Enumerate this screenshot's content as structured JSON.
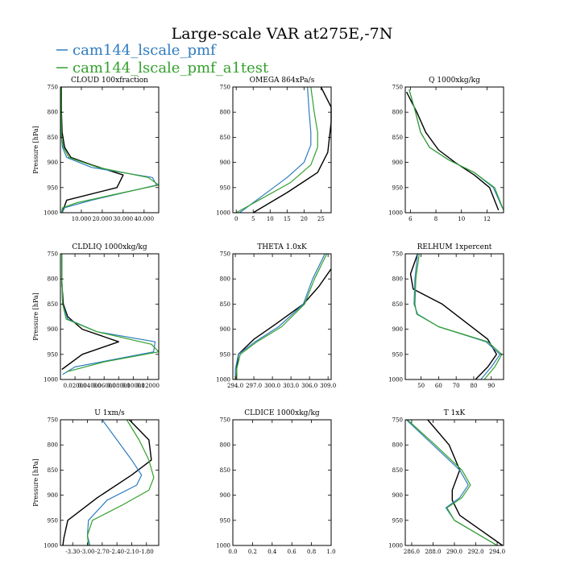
{
  "figure": {
    "title": "Large-scale VAR at275E,-7N",
    "legend": [
      {
        "label": "cam144_lscale_pmf",
        "color": "#2e7cbf"
      },
      {
        "label": "cam144_lscale_pmf_a1test",
        "color": "#33a02c"
      }
    ]
  },
  "colors": {
    "cam144_lscale_pmf": "#2e7cbf",
    "cam144_lscale_pmf_a1test": "#33a02c",
    "reference": "#000000"
  },
  "chart_data": [
    {
      "type": "line",
      "title": "CLOUD  100xfraction",
      "ylabel": "Pressure [hPa]",
      "ylim": [
        1000,
        750
      ],
      "xlim": [
        0,
        47
      ],
      "xticks": [
        10,
        20,
        30,
        40
      ],
      "xtick_labels": [
        "10.000",
        "20.000",
        "30.000",
        "40.000"
      ],
      "yticks": [
        750,
        800,
        850,
        900,
        950,
        1000
      ],
      "series": [
        {
          "color": "#000000",
          "x": [
            0.5,
            0.5,
            0.8,
            2,
            5,
            15,
            30,
            27,
            3,
            0.8
          ],
          "y": [
            750,
            800,
            840,
            870,
            890,
            905,
            925,
            950,
            975,
            1000
          ]
        },
        {
          "color": "#2e7cbf",
          "x": [
            0.4,
            0.4,
            0.5,
            1,
            3,
            15,
            44,
            46,
            15,
            2,
            0.8
          ],
          "y": [
            750,
            800,
            850,
            870,
            890,
            910,
            930,
            945,
            975,
            990,
            1000
          ]
        },
        {
          "color": "#33a02c",
          "x": [
            0.4,
            0.4,
            0.5,
            1.5,
            4,
            18,
            42,
            47,
            30,
            8,
            1,
            0.5
          ],
          "y": [
            750,
            800,
            850,
            870,
            890,
            910,
            930,
            945,
            960,
            980,
            990,
            1000
          ]
        }
      ]
    },
    {
      "type": "line",
      "title": "OMEGA  864xPa/s",
      "ylabel": "",
      "ylim": [
        1000,
        750
      ],
      "xlim": [
        -1,
        28
      ],
      "xticks": [
        0,
        5,
        10,
        15,
        20,
        25
      ],
      "xtick_labels": [
        "0",
        "5",
        "10",
        "15",
        "20",
        "25"
      ],
      "yticks": [
        750,
        800,
        850,
        900,
        950,
        1000
      ],
      "series": [
        {
          "color": "#000000",
          "x": [
            25,
            28,
            28,
            27.5,
            27,
            24,
            15,
            5
          ],
          "y": [
            750,
            790,
            820,
            850,
            880,
            920,
            960,
            1000
          ]
        },
        {
          "color": "#2e7cbf",
          "x": [
            21,
            21.5,
            22,
            22,
            20,
            15,
            8,
            1
          ],
          "y": [
            750,
            800,
            840,
            865,
            900,
            930,
            965,
            1000
          ]
        },
        {
          "color": "#33a02c",
          "x": [
            22,
            23,
            24,
            24,
            22,
            16,
            8,
            0
          ],
          "y": [
            750,
            800,
            840,
            870,
            905,
            940,
            970,
            1000
          ]
        }
      ]
    },
    {
      "type": "line",
      "title": "Q  1000xkg/kg",
      "ylabel": "",
      "ylim": [
        1000,
        750
      ],
      "xlim": [
        5.6,
        13.3
      ],
      "xticks": [
        6,
        8,
        10,
        12
      ],
      "xtick_labels": [
        "6",
        "8",
        "10",
        "12"
      ],
      "yticks": [
        750,
        800,
        850,
        900,
        950,
        1000
      ],
      "series": [
        {
          "color": "#000000",
          "x": [
            5.7,
            6.5,
            7.2,
            8.2,
            9.5,
            11,
            12.2,
            12.9
          ],
          "y": [
            760,
            800,
            840,
            875,
            900,
            925,
            950,
            995
          ]
        },
        {
          "color": "#2e7cbf",
          "x": [
            5.9,
            6.4,
            6.8,
            7.5,
            9,
            11,
            12.5,
            13.2
          ],
          "y": [
            755,
            800,
            840,
            870,
            895,
            920,
            950,
            990
          ]
        },
        {
          "color": "#33a02c",
          "x": [
            5.9,
            6.4,
            6.8,
            7.5,
            9,
            11,
            12.6,
            13.3
          ],
          "y": [
            755,
            800,
            840,
            870,
            895,
            920,
            950,
            995
          ]
        }
      ]
    },
    {
      "type": "line",
      "title": "CLDLIQ  1000xkg/kg",
      "ylabel": "Pressure [hPa]",
      "ylim": [
        1000,
        750
      ],
      "xlim": [
        0,
        0.135
      ],
      "xticks": [
        0.02,
        0.04,
        0.06,
        0.08,
        0.1,
        0.12
      ],
      "xtick_labels": [
        "0.02000",
        "0.04000",
        "0.06000",
        "0.08000",
        "0.10000",
        "0.12000"
      ],
      "yticks": [
        750,
        800,
        850,
        900,
        950,
        1000
      ],
      "series": [
        {
          "color": "#000000",
          "x": [
            0.002,
            0.002,
            0.004,
            0.01,
            0.03,
            0.08,
            0.03,
            0.002
          ],
          "y": [
            750,
            810,
            850,
            875,
            900,
            925,
            950,
            980
          ]
        },
        {
          "color": "#2e7cbf",
          "x": [
            0.002,
            0.002,
            0.003,
            0.01,
            0.05,
            0.13,
            0.128,
            0.02,
            0.003
          ],
          "y": [
            750,
            800,
            850,
            880,
            905,
            925,
            945,
            975,
            990
          ]
        },
        {
          "color": "#33a02c",
          "x": [
            0.002,
            0.002,
            0.003,
            0.008,
            0.05,
            0.125,
            0.135,
            0.06,
            0.008
          ],
          "y": [
            750,
            800,
            850,
            880,
            905,
            930,
            945,
            965,
            985
          ]
        }
      ]
    },
    {
      "type": "line",
      "title": "THETA  1.0xK",
      "ylabel": "",
      "ylim": [
        1000,
        750
      ],
      "xlim": [
        293.6,
        309.5
      ],
      "xticks": [
        294,
        297,
        300,
        303,
        306,
        309
      ],
      "xtick_labels": [
        "294.0",
        "297.0",
        "300.0",
        "303.0",
        "306.0",
        "309.0"
      ],
      "yticks": [
        750,
        800,
        850,
        900,
        950,
        1000
      ],
      "series": [
        {
          "color": "#000000",
          "x": [
            309.5,
            307.5,
            305,
            300.5,
            297,
            294.5,
            294.2,
            294.2
          ],
          "y": [
            780,
            815,
            850,
            890,
            920,
            950,
            980,
            1000
          ]
        },
        {
          "color": "#2e7cbf",
          "x": [
            308.5,
            306.5,
            305,
            301,
            297.2,
            294.5,
            294,
            294
          ],
          "y": [
            750,
            800,
            850,
            895,
            925,
            950,
            980,
            1000
          ]
        },
        {
          "color": "#33a02c",
          "x": [
            308.8,
            306.8,
            305.2,
            301.5,
            297.5,
            294.8,
            294.2,
            294.1
          ],
          "y": [
            750,
            800,
            850,
            895,
            925,
            950,
            980,
            1000
          ]
        }
      ]
    },
    {
      "type": "line",
      "title": "RELHUM  1xpercent",
      "ylabel": "",
      "ylim": [
        1000,
        750
      ],
      "xlim": [
        41,
        97
      ],
      "xticks": [
        50,
        60,
        70,
        80,
        90
      ],
      "xtick_labels": [
        "50",
        "60",
        "70",
        "80",
        "90"
      ],
      "yticks": [
        750,
        800,
        850,
        900,
        950,
        1000
      ],
      "series": [
        {
          "color": "#000000",
          "x": [
            48,
            44,
            45.5,
            62,
            88,
            93,
            88,
            81
          ],
          "y": [
            750,
            790,
            820,
            850,
            920,
            950,
            975,
            1000
          ]
        },
        {
          "color": "#2e7cbf",
          "x": [
            48,
            46.5,
            46,
            48,
            60,
            87,
            95,
            90,
            84
          ],
          "y": [
            750,
            800,
            850,
            870,
            895,
            925,
            950,
            975,
            1000
          ]
        },
        {
          "color": "#33a02c",
          "x": [
            49,
            47,
            46.5,
            47.5,
            60,
            88,
            96,
            92,
            86
          ],
          "y": [
            750,
            800,
            850,
            870,
            895,
            925,
            950,
            975,
            1000
          ]
        }
      ]
    },
    {
      "type": "line",
      "title": "U  1xm/s",
      "ylabel": "Pressure [hPa]",
      "ylim": [
        1000,
        750
      ],
      "xlim": [
        -3.55,
        -1.55
      ],
      "xticks": [
        -3.3,
        -3,
        -2.7,
        -2.4,
        -2.1,
        -1.8
      ],
      "xtick_labels": [
        "-3.30",
        "-3.00",
        "-2.70",
        "-2.40",
        "-2.10",
        "-1.80"
      ],
      "yticks": [
        750,
        800,
        850,
        900,
        950,
        1000
      ],
      "series": [
        {
          "color": "#000000",
          "x": [
            -2.15,
            -1.75,
            -1.7,
            -2.1,
            -2.8,
            -3.4,
            -3.48,
            -3.5
          ],
          "y": [
            750,
            790,
            830,
            860,
            905,
            950,
            985,
            1000
          ]
        },
        {
          "color": "#2e7cbf",
          "x": [
            -2.7,
            -2.4,
            -2.1,
            -1.9,
            -2.0,
            -2.6,
            -2.98,
            -3.0,
            -2.95
          ],
          "y": [
            750,
            790,
            830,
            860,
            880,
            910,
            950,
            980,
            1000
          ]
        },
        {
          "color": "#33a02c",
          "x": [
            -2.2,
            -1.95,
            -1.75,
            -1.65,
            -1.75,
            -2.3,
            -2.9,
            -3.0,
            -2.98
          ],
          "y": [
            750,
            790,
            830,
            865,
            890,
            920,
            950,
            980,
            1000
          ]
        }
      ]
    },
    {
      "type": "line",
      "title": "CLDICE  1000xkg/kg",
      "ylabel": "",
      "ylim": [
        1000,
        750
      ],
      "xlim": [
        0,
        1
      ],
      "xticks": [
        0,
        0.2,
        0.4,
        0.6,
        0.8,
        1
      ],
      "xtick_labels": [
        "0.0",
        "0.2",
        "0.4",
        "0.6",
        "0.8",
        "1.0"
      ],
      "yticks": [
        750,
        800,
        850,
        900,
        950,
        1000
      ],
      "series": []
    },
    {
      "type": "line",
      "title": "T  1xK",
      "ylabel": "",
      "ylim": [
        1000,
        750
      ],
      "xlim": [
        285.4,
        294.6
      ],
      "xticks": [
        286,
        288,
        290,
        292,
        294
      ],
      "xtick_labels": [
        "286.0",
        "288.0",
        "290.0",
        "292.0",
        "294.0"
      ],
      "yticks": [
        750,
        800,
        850,
        900,
        950,
        1000
      ],
      "series": [
        {
          "color": "#000000",
          "x": [
            287.5,
            289.5,
            290.5,
            289.8,
            289.8,
            290.5,
            292.5,
            294.5
          ],
          "y": [
            750,
            800,
            850,
            890,
            910,
            940,
            970,
            1000
          ]
        },
        {
          "color": "#2e7cbf",
          "x": [
            285.5,
            288,
            290.5,
            291.3,
            290.5,
            289.2,
            290,
            292,
            294
          ],
          "y": [
            750,
            800,
            850,
            880,
            905,
            925,
            950,
            975,
            1000
          ]
        },
        {
          "color": "#33a02c",
          "x": [
            285.6,
            288.2,
            290.7,
            291.5,
            290.7,
            289.3,
            290,
            292,
            294
          ],
          "y": [
            750,
            800,
            850,
            880,
            905,
            925,
            950,
            975,
            1000
          ]
        }
      ]
    }
  ]
}
